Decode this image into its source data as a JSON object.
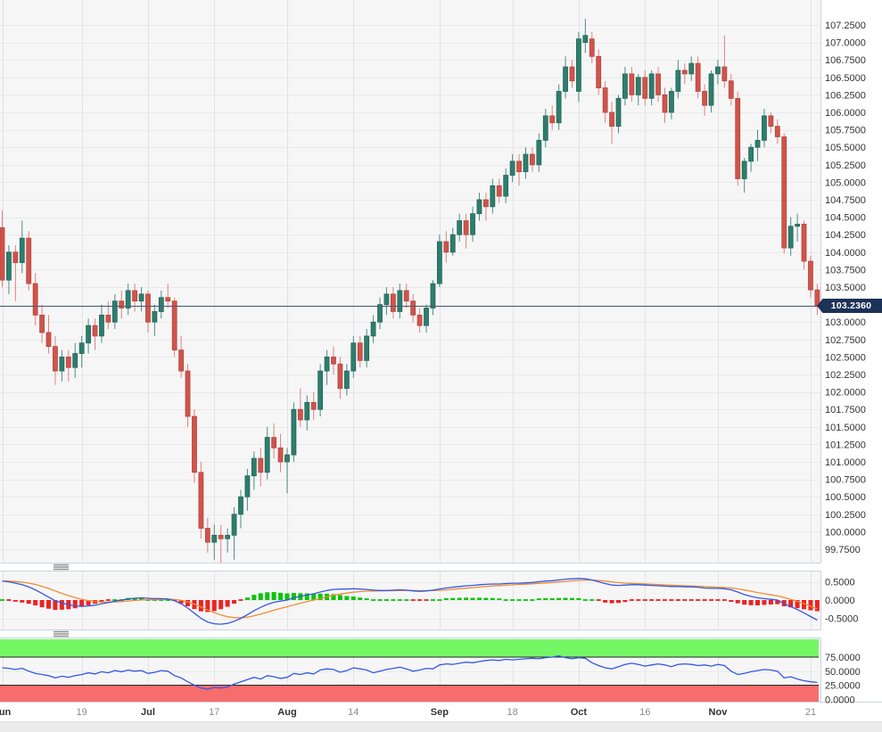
{
  "colors": {
    "panel_bg": "#f6f6f7",
    "grid": "#eaeaec",
    "vgrid": "#e3e3e6",
    "border": "#ccd3e0",
    "text": "#333333",
    "day_text": "#8a8a8a",
    "candle_up": "#2f7d6d",
    "candle_up_border": "#20685a",
    "candle_up_wick": "#4f8d80",
    "candle_down": "#d0544b",
    "candle_down_border": "#b6463e",
    "candle_down_wick": "#dc837c",
    "price_line": "#475a74",
    "price_tag_bg": "#1c3257",
    "macd_line": "#3558e6",
    "signal_line": "#ef8d31",
    "hist_up": "#0bc40b",
    "hist_down": "#ea2424",
    "rsi_line": "#3558e6",
    "overbought_band": "#74f765",
    "oversold_band": "#f76d6d",
    "band_edge": "#262626",
    "handle": "#909090",
    "bottom_strip": "#ececec"
  },
  "chart_data": {
    "type": "candlestick",
    "panels": [
      "price-candles",
      "macd",
      "rsi"
    ],
    "legend_position": "none",
    "grid": true,
    "last_price": {
      "label": "103.2360",
      "value": 103.236
    },
    "price_axis": {
      "max": 107.25,
      "min": 99.75,
      "step": 0.25,
      "decimals": 4
    },
    "x_ticks": [
      {
        "i": 0,
        "label": "Jun",
        "month": true
      },
      {
        "i": 12,
        "label": "19",
        "month": false
      },
      {
        "i": 22,
        "label": "Jul",
        "month": true
      },
      {
        "i": 32,
        "label": "17",
        "month": false
      },
      {
        "i": 43,
        "label": "Aug",
        "month": true
      },
      {
        "i": 53,
        "label": "14",
        "month": false
      },
      {
        "i": 66,
        "label": "Sep",
        "month": true
      },
      {
        "i": 77,
        "label": "18",
        "month": false
      },
      {
        "i": 87,
        "label": "Oct",
        "month": true
      },
      {
        "i": 97,
        "label": "16",
        "month": false
      },
      {
        "i": 108,
        "label": "Nov",
        "month": true
      },
      {
        "i": 122,
        "label": "21",
        "month": false
      }
    ],
    "candles": [
      [
        104.35,
        104.6,
        103.5,
        103.6
      ],
      [
        103.6,
        104.1,
        103.4,
        104.0
      ],
      [
        104.0,
        104.1,
        103.3,
        103.85
      ],
      [
        103.85,
        104.45,
        103.7,
        104.2
      ],
      [
        104.2,
        104.3,
        103.45,
        103.55
      ],
      [
        103.55,
        103.7,
        102.95,
        103.1
      ],
      [
        103.1,
        103.25,
        102.7,
        102.85
      ],
      [
        102.85,
        103.1,
        102.55,
        102.65
      ],
      [
        102.65,
        102.8,
        102.1,
        102.3
      ],
      [
        102.3,
        102.6,
        102.15,
        102.5
      ],
      [
        102.5,
        102.6,
        102.15,
        102.35
      ],
      [
        102.35,
        102.7,
        102.2,
        102.55
      ],
      [
        102.55,
        102.8,
        102.35,
        102.7
      ],
      [
        102.7,
        103.05,
        102.55,
        102.95
      ],
      [
        102.95,
        103.05,
        102.6,
        102.8
      ],
      [
        102.8,
        103.25,
        102.7,
        103.1
      ],
      [
        103.1,
        103.3,
        102.9,
        103.0
      ],
      [
        103.0,
        103.4,
        102.9,
        103.3
      ],
      [
        103.3,
        103.45,
        103.05,
        103.2
      ],
      [
        103.2,
        103.55,
        103.1,
        103.45
      ],
      [
        103.45,
        103.55,
        103.15,
        103.3
      ],
      [
        103.3,
        103.5,
        103.15,
        103.4
      ],
      [
        103.4,
        103.45,
        102.85,
        103.0
      ],
      [
        103.0,
        103.25,
        102.8,
        103.15
      ],
      [
        103.15,
        103.45,
        103.05,
        103.35
      ],
      [
        103.35,
        103.55,
        103.2,
        103.3
      ],
      [
        103.3,
        103.35,
        102.5,
        102.6
      ],
      [
        102.6,
        102.8,
        102.2,
        102.3
      ],
      [
        102.3,
        102.4,
        101.5,
        101.65
      ],
      [
        101.65,
        101.75,
        100.7,
        100.85
      ],
      [
        100.85,
        101.0,
        99.9,
        100.05
      ],
      [
        100.05,
        100.2,
        99.7,
        99.85
      ],
      [
        99.85,
        100.1,
        99.6,
        99.95
      ],
      [
        99.95,
        100.1,
        99.55,
        99.9
      ],
      [
        99.9,
        100.05,
        99.7,
        99.95
      ],
      [
        99.95,
        100.35,
        99.6,
        100.25
      ],
      [
        100.25,
        100.6,
        100.05,
        100.5
      ],
      [
        100.5,
        100.9,
        100.3,
        100.8
      ],
      [
        100.8,
        101.15,
        100.6,
        101.05
      ],
      [
        101.05,
        101.2,
        100.65,
        100.85
      ],
      [
        100.85,
        101.5,
        100.75,
        101.35
      ],
      [
        101.35,
        101.55,
        101.05,
        101.2
      ],
      [
        101.2,
        101.4,
        100.85,
        101.0
      ],
      [
        101.0,
        101.2,
        100.55,
        101.1
      ],
      [
        101.1,
        101.85,
        101.0,
        101.75
      ],
      [
        101.75,
        102.05,
        101.5,
        101.6
      ],
      [
        101.6,
        101.95,
        101.45,
        101.85
      ],
      [
        101.85,
        102.0,
        101.6,
        101.75
      ],
      [
        101.75,
        102.4,
        101.65,
        102.3
      ],
      [
        102.3,
        102.6,
        102.1,
        102.5
      ],
      [
        102.5,
        102.65,
        102.25,
        102.4
      ],
      [
        102.4,
        102.5,
        101.9,
        102.05
      ],
      [
        102.05,
        102.4,
        101.95,
        102.3
      ],
      [
        102.3,
        102.8,
        102.2,
        102.7
      ],
      [
        102.7,
        102.8,
        102.35,
        102.45
      ],
      [
        102.45,
        102.9,
        102.35,
        102.8
      ],
      [
        102.8,
        103.1,
        102.7,
        103.0
      ],
      [
        103.0,
        103.35,
        102.9,
        103.25
      ],
      [
        103.25,
        103.5,
        103.1,
        103.4
      ],
      [
        103.4,
        103.5,
        103.05,
        103.15
      ],
      [
        103.15,
        103.55,
        103.05,
        103.45
      ],
      [
        103.45,
        103.55,
        103.2,
        103.3
      ],
      [
        103.3,
        103.4,
        103.0,
        103.1
      ],
      [
        103.1,
        103.2,
        102.85,
        102.95
      ],
      [
        102.95,
        103.25,
        102.85,
        103.2
      ],
      [
        103.2,
        103.6,
        103.1,
        103.55
      ],
      [
        103.55,
        104.25,
        103.5,
        104.15
      ],
      [
        104.15,
        104.3,
        103.85,
        104.0
      ],
      [
        104.0,
        104.35,
        103.95,
        104.25
      ],
      [
        104.25,
        104.55,
        104.15,
        104.45
      ],
      [
        104.45,
        104.55,
        104.05,
        104.25
      ],
      [
        104.25,
        104.65,
        104.15,
        104.55
      ],
      [
        104.55,
        104.85,
        104.45,
        104.75
      ],
      [
        104.75,
        104.85,
        104.45,
        104.65
      ],
      [
        104.65,
        105.05,
        104.55,
        104.95
      ],
      [
        104.95,
        105.05,
        104.7,
        104.8
      ],
      [
        104.8,
        105.2,
        104.7,
        105.1
      ],
      [
        105.1,
        105.4,
        105.0,
        105.3
      ],
      [
        105.3,
        105.4,
        104.95,
        105.15
      ],
      [
        105.15,
        105.5,
        105.05,
        105.4
      ],
      [
        105.4,
        105.5,
        105.15,
        105.25
      ],
      [
        105.25,
        105.7,
        105.15,
        105.6
      ],
      [
        105.6,
        106.05,
        105.5,
        105.95
      ],
      [
        105.95,
        106.1,
        105.75,
        105.85
      ],
      [
        105.85,
        106.4,
        105.75,
        106.3
      ],
      [
        106.3,
        106.8,
        106.2,
        106.65
      ],
      [
        106.65,
        106.75,
        106.35,
        106.45
      ],
      [
        106.3,
        107.15,
        106.15,
        107.05
      ],
      [
        107.0,
        107.34,
        106.85,
        107.1
      ],
      [
        107.05,
        107.15,
        106.7,
        106.8
      ],
      [
        106.8,
        106.9,
        106.25,
        106.35
      ],
      [
        106.35,
        106.45,
        105.85,
        106.0
      ],
      [
        106.0,
        106.15,
        105.55,
        105.8
      ],
      [
        105.8,
        106.25,
        105.7,
        106.2
      ],
      [
        106.2,
        106.65,
        106.1,
        106.55
      ],
      [
        106.55,
        106.65,
        106.15,
        106.25
      ],
      [
        106.25,
        106.55,
        106.1,
        106.5
      ],
      [
        106.5,
        106.6,
        106.1,
        106.2
      ],
      [
        106.2,
        106.6,
        106.1,
        106.55
      ],
      [
        106.55,
        106.65,
        106.15,
        106.25
      ],
      [
        106.25,
        106.35,
        105.85,
        106.0
      ],
      [
        106.0,
        106.35,
        105.9,
        106.3
      ],
      [
        106.3,
        106.75,
        106.2,
        106.6
      ],
      [
        106.6,
        106.7,
        106.4,
        106.55
      ],
      [
        106.55,
        106.8,
        106.45,
        106.7
      ],
      [
        106.7,
        106.8,
        106.2,
        106.3
      ],
      [
        106.3,
        106.4,
        105.95,
        106.1
      ],
      [
        106.1,
        106.6,
        106.0,
        106.55
      ],
      [
        106.55,
        106.75,
        106.4,
        106.65
      ],
      [
        106.65,
        107.1,
        106.35,
        106.45
      ],
      [
        106.45,
        106.55,
        106.1,
        106.2
      ],
      [
        106.2,
        106.3,
        104.95,
        105.05
      ],
      [
        105.05,
        105.35,
        104.85,
        105.3
      ],
      [
        105.3,
        105.55,
        105.15,
        105.5
      ],
      [
        105.5,
        105.75,
        105.3,
        105.6
      ],
      [
        105.6,
        106.05,
        105.5,
        105.95
      ],
      [
        105.95,
        106.0,
        105.7,
        105.8
      ],
      [
        105.8,
        105.9,
        105.55,
        105.65
      ],
      [
        105.65,
        105.7,
        103.98,
        104.06
      ],
      [
        104.06,
        104.5,
        103.95,
        104.37
      ],
      [
        104.37,
        104.55,
        104.15,
        104.4
      ],
      [
        104.4,
        104.45,
        103.75,
        103.87
      ],
      [
        103.87,
        103.95,
        103.35,
        103.46
      ],
      [
        103.46,
        103.55,
        103.1,
        103.236
      ]
    ],
    "macd": {
      "yticks": [
        0.5,
        0,
        -0.5
      ],
      "decimals": 4,
      "signal_period": 9,
      "ylim": [
        -0.8,
        0.78
      ],
      "values": [
        0.52,
        0.5,
        0.46,
        0.42,
        0.36,
        0.28,
        0.18,
        0.08,
        -0.02,
        -0.08,
        -0.13,
        -0.16,
        -0.17,
        -0.16,
        -0.14,
        -0.1,
        -0.07,
        -0.03,
        0.0,
        0.03,
        0.05,
        0.06,
        0.05,
        0.04,
        0.04,
        0.03,
        -0.02,
        -0.1,
        -0.22,
        -0.36,
        -0.5,
        -0.6,
        -0.65,
        -0.66,
        -0.64,
        -0.58,
        -0.5,
        -0.4,
        -0.29,
        -0.2,
        -0.12,
        -0.06,
        -0.03,
        0.0,
        0.06,
        0.1,
        0.14,
        0.17,
        0.22,
        0.26,
        0.29,
        0.3,
        0.3,
        0.31,
        0.3,
        0.29,
        0.27,
        0.26,
        0.26,
        0.27,
        0.28,
        0.27,
        0.25,
        0.24,
        0.25,
        0.27,
        0.3,
        0.33,
        0.35,
        0.37,
        0.39,
        0.4,
        0.42,
        0.43,
        0.44,
        0.44,
        0.45,
        0.46,
        0.46,
        0.47,
        0.48,
        0.5,
        0.52,
        0.53,
        0.55,
        0.57,
        0.58,
        0.59,
        0.58,
        0.55,
        0.5,
        0.45,
        0.41,
        0.4,
        0.41,
        0.42,
        0.42,
        0.41,
        0.4,
        0.39,
        0.38,
        0.37,
        0.37,
        0.36,
        0.36,
        0.35,
        0.33,
        0.32,
        0.32,
        0.31,
        0.28,
        0.22,
        0.15,
        0.1,
        0.06,
        0.04,
        0.02,
        0.0,
        -0.1,
        -0.18,
        -0.26,
        -0.35,
        -0.45,
        -0.55
      ]
    },
    "rsi": {
      "yticks": [
        75,
        50,
        25,
        0
      ],
      "decimals": 4,
      "overbought": 75,
      "oversold": 25,
      "values": [
        56,
        55,
        53,
        55,
        50,
        46,
        44,
        42,
        38,
        41,
        39,
        42,
        44,
        47,
        45,
        49,
        47,
        51,
        49,
        52,
        50,
        51,
        46,
        48,
        51,
        50,
        42,
        38,
        31,
        25,
        20,
        18,
        21,
        20,
        22,
        27,
        31,
        35,
        39,
        36,
        42,
        40,
        37,
        39,
        46,
        44,
        47,
        45,
        52,
        54,
        53,
        48,
        51,
        56,
        54,
        52,
        47,
        50,
        53,
        55,
        57,
        54,
        50,
        52,
        55,
        54,
        61,
        63,
        62,
        64,
        66,
        65,
        67,
        69,
        70,
        69,
        71,
        70,
        71,
        72,
        73,
        72,
        74,
        75,
        77,
        74,
        72,
        74,
        73,
        65,
        60,
        56,
        54,
        58,
        62,
        64,
        62,
        59,
        61,
        63,
        61,
        58,
        62,
        63,
        62,
        60,
        61,
        59,
        62,
        60,
        50,
        44,
        46,
        49,
        51,
        53,
        52,
        50,
        38,
        40,
        36,
        33,
        31,
        30
      ]
    }
  }
}
